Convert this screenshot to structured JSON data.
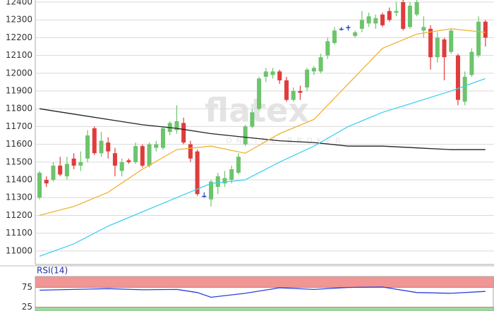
{
  "chart_data": [
    {
      "type": "candlestick",
      "ylim": [
        10924,
        12412
      ],
      "xlim": [
        -0.62,
        66.25
      ],
      "yticks": [
        11000,
        11100,
        11200,
        11300,
        11400,
        11500,
        11600,
        11700,
        11800,
        11900,
        12000,
        12100,
        12200,
        12300,
        12400
      ],
      "grid": true,
      "up_color": "#6cc46c",
      "down_color": "#e03c3c",
      "flat_color": "#1f3fcf",
      "watermark": {
        "logo": "flatex",
        "tagline": "ONLINE BROKER"
      },
      "open": [
        11300,
        11400,
        11400,
        11480,
        11420,
        11520,
        11480,
        11520,
        11690,
        11550,
        11610,
        11550,
        11450,
        11510,
        11500,
        11590,
        11480,
        11580,
        11580,
        11670,
        11680,
        11720,
        11600,
        11560,
        11310,
        11290,
        11360,
        11380,
        11400,
        11440,
        11600,
        11700,
        11800,
        11980,
        11990,
        12010,
        11960,
        11850,
        11900,
        11920,
        12010,
        12010,
        12100,
        12170,
        12250,
        12260,
        12210,
        12250,
        12280,
        12280,
        12330,
        12350,
        12340,
        12400,
        12260,
        12330,
        12240,
        12250,
        12090,
        12190,
        12120,
        12100,
        11840,
        11990,
        12100,
        12290
      ],
      "high": [
        11450,
        11420,
        11500,
        11530,
        11530,
        11550,
        11560,
        11680,
        11700,
        11670,
        11640,
        11580,
        11520,
        11520,
        11610,
        11600,
        11610,
        11620,
        11700,
        11730,
        11820,
        11750,
        11620,
        11570,
        11330,
        11400,
        11440,
        11450,
        11480,
        11550,
        11710,
        11800,
        11980,
        12030,
        12030,
        12020,
        11980,
        11920,
        11930,
        12030,
        12040,
        12110,
        12200,
        12260,
        12260,
        12270,
        12240,
        12350,
        12340,
        12330,
        12340,
        12370,
        12400,
        12420,
        12400,
        12420,
        12320,
        12270,
        12230,
        12200,
        12250,
        12110,
        12010,
        12140,
        12320,
        12300
      ],
      "low": [
        11290,
        11360,
        11390,
        11420,
        11400,
        11460,
        11450,
        11500,
        11540,
        11530,
        11520,
        11420,
        11420,
        11490,
        11490,
        11470,
        11470,
        11560,
        11570,
        11650,
        11660,
        11600,
        11500,
        11310,
        11300,
        11250,
        11320,
        11360,
        11380,
        11430,
        11590,
        11690,
        11790,
        11950,
        11970,
        11940,
        11840,
        11840,
        11850,
        11900,
        11990,
        12000,
        12080,
        12160,
        12240,
        12240,
        12200,
        12230,
        12260,
        12250,
        12260,
        12290,
        12320,
        12240,
        12250,
        12320,
        12200,
        12020,
        12060,
        11960,
        12110,
        11820,
        11820,
        11980,
        12090,
        12150
      ],
      "close": [
        11440,
        11380,
        11480,
        11430,
        11490,
        11480,
        11500,
        11650,
        11550,
        11620,
        11560,
        11480,
        11500,
        11500,
        11590,
        11480,
        11600,
        11600,
        11690,
        11720,
        11730,
        11610,
        11520,
        11320,
        11310,
        11390,
        11420,
        11410,
        11460,
        11530,
        11700,
        11780,
        11970,
        12010,
        12010,
        11960,
        11850,
        11900,
        11890,
        12020,
        12030,
        12090,
        12180,
        12240,
        12250,
        12260,
        12230,
        12300,
        12320,
        12310,
        12270,
        12300,
        12350,
        12250,
        12380,
        12400,
        12260,
        12090,
        12200,
        12090,
        12240,
        11850,
        11980,
        12120,
        12290,
        12200
      ],
      "lines": [
        {
          "color": "#222222",
          "x": [
            0,
            5,
            10,
            15,
            20,
            25,
            30,
            35,
            40,
            45,
            50,
            55,
            60,
            65
          ],
          "values": [
            11800,
            11770,
            11740,
            11710,
            11690,
            11660,
            11640,
            11620,
            11610,
            11590,
            11590,
            11580,
            11570,
            11570
          ]
        },
        {
          "color": "#f2b233",
          "x": [
            0,
            5,
            10,
            15,
            20,
            25,
            30,
            35,
            40,
            45,
            50,
            55,
            60,
            65
          ],
          "values": [
            11200,
            11250,
            11330,
            11460,
            11570,
            11590,
            11550,
            11660,
            11740,
            11940,
            12140,
            12220,
            12250,
            12230
          ]
        },
        {
          "color": "#3fd0f0",
          "x": [
            0,
            5,
            10,
            15,
            20,
            25,
            30,
            35,
            40,
            45,
            50,
            55,
            60,
            65
          ],
          "values": [
            10970,
            11040,
            11140,
            11220,
            11300,
            11380,
            11400,
            11500,
            11590,
            11700,
            11780,
            11840,
            11900,
            11970
          ]
        }
      ]
    },
    {
      "type": "line",
      "title": "RSI(14)",
      "ylim": [
        15,
        103
      ],
      "xlim": [
        -0.62,
        66.25
      ],
      "yticks": [
        25,
        75
      ],
      "bands": [
        {
          "from": 75,
          "to": 103,
          "color": "#f08a8a"
        },
        {
          "from": 15,
          "to": 25,
          "color": "#8ed88e"
        }
      ],
      "series": [
        {
          "color": "#2a3fd8",
          "x": [
            0,
            5,
            10,
            15,
            20,
            23,
            25,
            30,
            35,
            40,
            45,
            50,
            55,
            60,
            65
          ],
          "values": [
            68,
            70,
            72,
            69,
            70,
            62,
            50,
            60,
            74,
            70,
            75,
            76,
            62,
            60,
            65
          ]
        }
      ]
    }
  ]
}
